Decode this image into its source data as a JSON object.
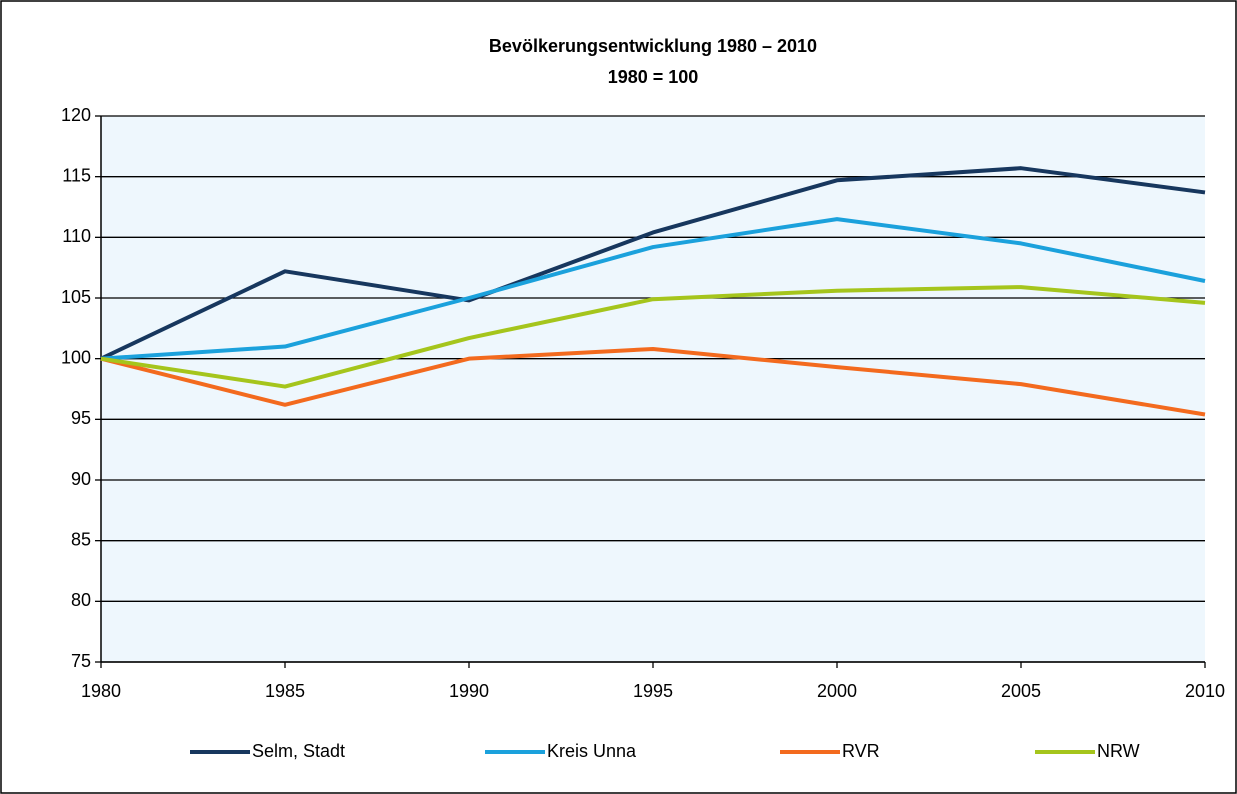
{
  "chart_data": {
    "type": "line",
    "title": "Bevölkerungsentwicklung 1980 – 2010",
    "subtitle": "1980 = 100",
    "x": [
      1980,
      1985,
      1990,
      1995,
      2000,
      2005,
      2010
    ],
    "xlim": [
      1980,
      2010
    ],
    "xticks": [
      1980,
      1985,
      1990,
      1995,
      2000,
      2005,
      2010
    ],
    "ylim": [
      75,
      120
    ],
    "yticks": [
      75,
      80,
      85,
      90,
      95,
      100,
      105,
      110,
      115,
      120
    ],
    "grid": true,
    "legend": "bottom",
    "series": [
      {
        "name": "Selm, Stadt",
        "color": "#17375e",
        "values": [
          100,
          107.2,
          104.8,
          110.4,
          114.7,
          115.7,
          113.7
        ]
      },
      {
        "name": "Kreis Unna",
        "color": "#1ba1dc",
        "values": [
          100,
          101.0,
          105.0,
          109.2,
          111.5,
          109.5,
          106.4
        ]
      },
      {
        "name": "RVR",
        "color": "#f36a1e",
        "values": [
          100,
          96.2,
          100.0,
          100.8,
          99.3,
          97.9,
          95.4
        ]
      },
      {
        "name": "NRW",
        "color": "#a5c51c",
        "values": [
          100,
          97.7,
          101.7,
          104.9,
          105.6,
          105.9,
          104.6
        ]
      }
    ]
  }
}
